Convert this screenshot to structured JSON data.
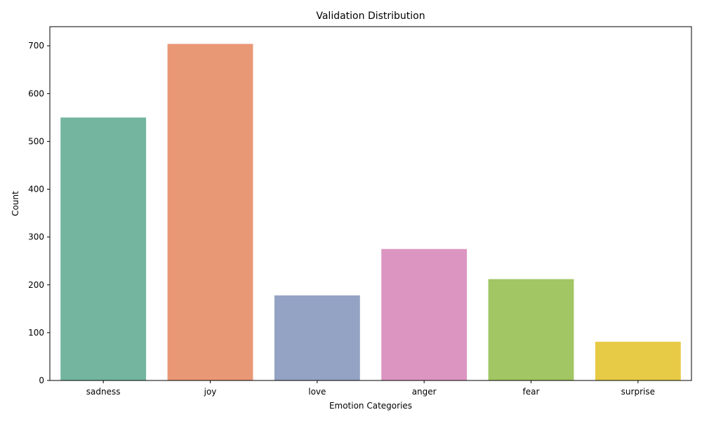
{
  "chart_data": {
    "type": "bar",
    "title": "Validation Distribution",
    "xlabel": "Emotion Categories",
    "ylabel": "Count",
    "categories": [
      "sadness",
      "joy",
      "love",
      "anger",
      "fear",
      "surprise"
    ],
    "values": [
      550,
      704,
      178,
      275,
      212,
      81
    ],
    "colors": [
      "#73b59f",
      "#e99876",
      "#94a3c3",
      "#dc95c1",
      "#a1c663",
      "#e7ca45"
    ],
    "ylim": [
      0,
      740
    ],
    "yticks": [
      0,
      100,
      200,
      300,
      400,
      500,
      600,
      700
    ],
    "grid": false
  }
}
